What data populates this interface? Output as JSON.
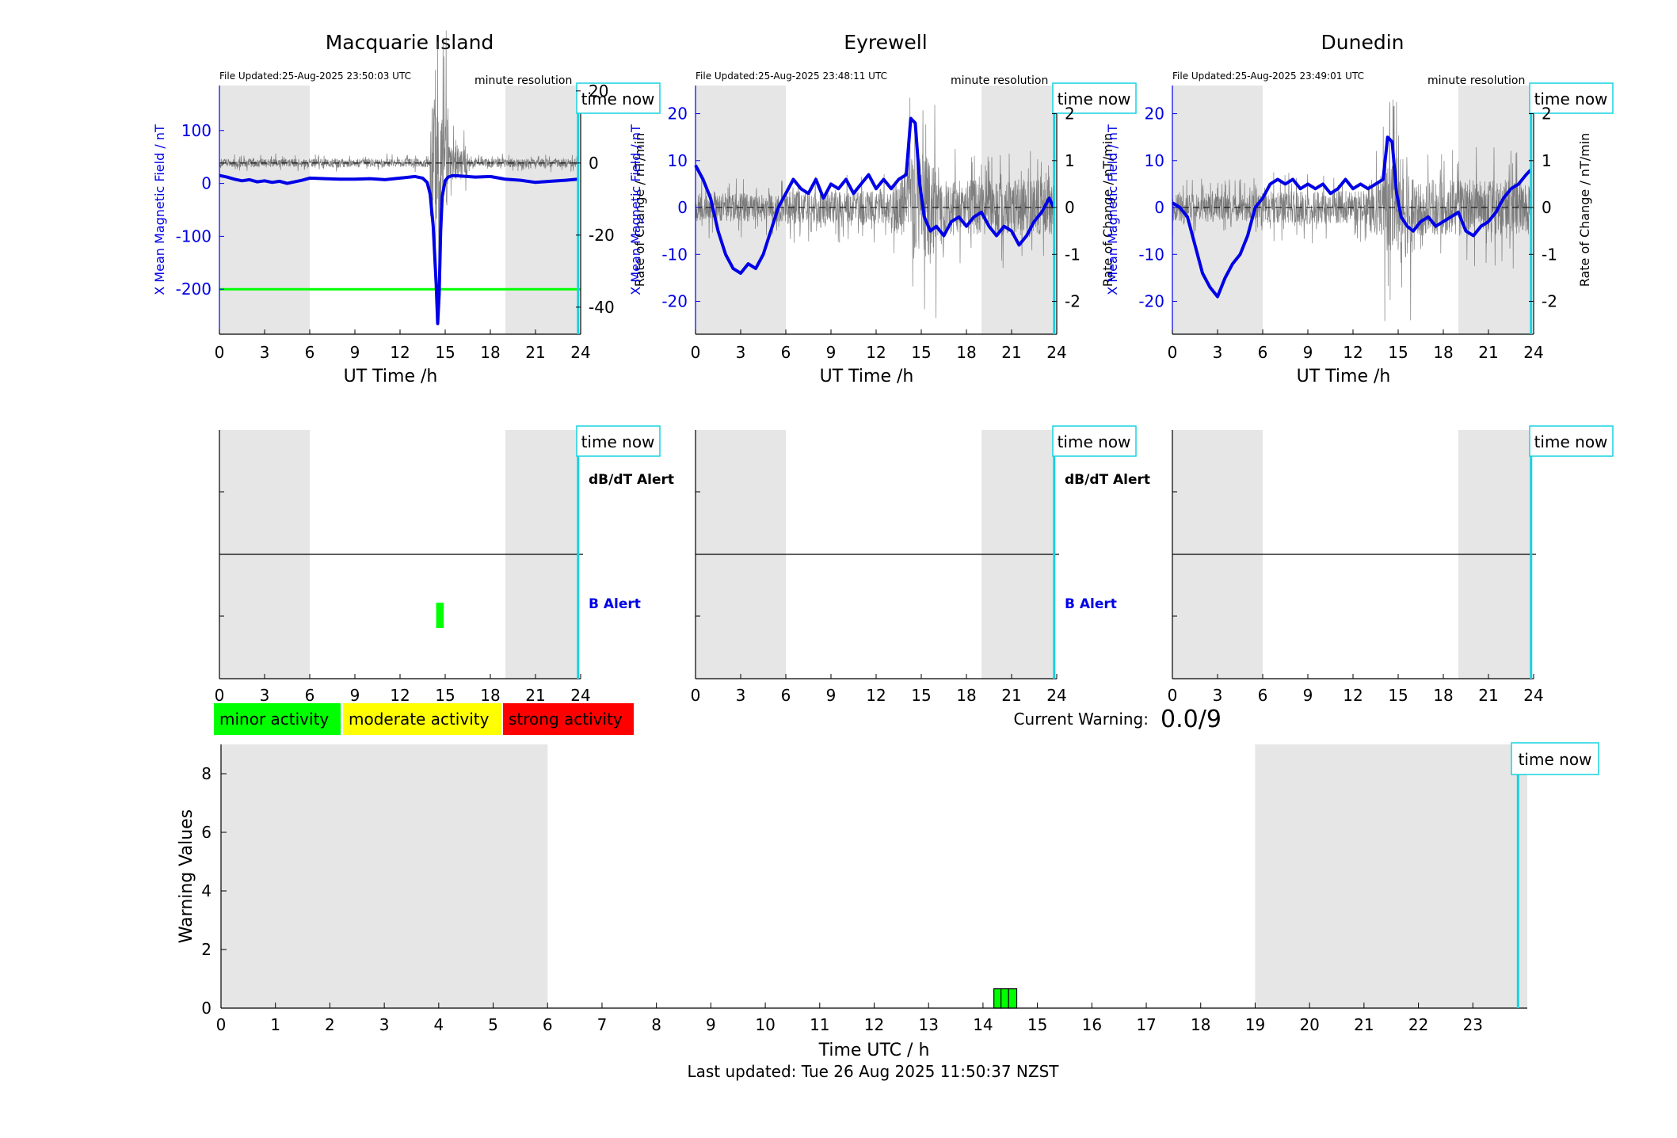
{
  "panels": [
    {
      "station": "Macquarie Island",
      "file_updated": "File Updated:25-Aug-2025 23:50:03 UTC",
      "resolution": "minute resolution",
      "time_now_label": "time now",
      "left_axis_label": "X Mean Magnetic Field / nT",
      "right_axis_label": "Rate of Change / nT/min",
      "xlabel": "UT Time /h",
      "left_ylim": [
        -285,
        185
      ],
      "left_ticks": [
        100,
        0,
        -100,
        -200
      ],
      "right_ylim": [
        -47.5,
        21.5
      ],
      "right_ticks": [
        20,
        0,
        -20,
        -40
      ],
      "threshold_line": -200,
      "threshold_color": "#00ff00",
      "alert_labels": {
        "dbdt": "dB/dT Alert",
        "b": "B Alert"
      },
      "alerts": [
        {
          "start": 14.4,
          "end": 14.9,
          "type": "B",
          "color": "#00ff00"
        }
      ]
    },
    {
      "station": "Eyrewell",
      "file_updated": "File Updated:25-Aug-2025 23:48:11 UTC",
      "resolution": "minute resolution",
      "time_now_label": "time now",
      "left_axis_label": "X Mean Magnetic Field / nT",
      "right_axis_label": "Rate of Change / nT/min",
      "xlabel": "UT Time /h",
      "left_ylim": [
        -27,
        26
      ],
      "left_ticks": [
        20,
        10,
        0,
        -10,
        -20
      ],
      "right_ylim": [
        -2.7,
        2.6
      ],
      "right_ticks": [
        2,
        1,
        0,
        -1,
        -2
      ],
      "threshold_line": null,
      "alert_labels": {
        "dbdt": "dB/dT Alert",
        "b": "B Alert"
      },
      "alerts": []
    },
    {
      "station": "Dunedin",
      "file_updated": "File Updated:25-Aug-2025 23:49:01 UTC",
      "resolution": "minute resolution",
      "time_now_label": "time now",
      "left_axis_label": "X Mean Magnetic Field / nT",
      "right_axis_label": "Rate of Change / nT/min",
      "xlabel": "UT Time /h",
      "left_ylim": [
        -27,
        26
      ],
      "left_ticks": [
        20,
        10,
        0,
        -10,
        -20
      ],
      "right_ylim": [
        -2.7,
        2.6
      ],
      "right_ticks": [
        2,
        1,
        0,
        -1,
        -2
      ],
      "threshold_line": null,
      "alert_labels": {
        "dbdt": "",
        "b": ""
      },
      "alerts": []
    }
  ],
  "time_now_hour": 23.83,
  "night_periods": [
    [
      0,
      6
    ],
    [
      19,
      24
    ]
  ],
  "xticks": [
    0,
    3,
    6,
    9,
    12,
    15,
    18,
    21,
    24
  ],
  "legend": [
    {
      "label": "minor activity",
      "color": "#00ff00"
    },
    {
      "label": "moderate activity",
      "color": "#ffff00"
    },
    {
      "label": "strong activity",
      "color": "#ff0000"
    }
  ],
  "current_warning_label": "Current Warning:",
  "current_warning_value": "0.0/9",
  "warning_chart": {
    "ylabel": "Warning Values",
    "xlabel": "Time UTC / h",
    "ylim": [
      0,
      9
    ],
    "yticks": [
      0,
      2,
      4,
      6,
      8
    ],
    "xticks": [
      0,
      1,
      2,
      3,
      4,
      5,
      6,
      7,
      8,
      9,
      10,
      11,
      12,
      13,
      14,
      15,
      16,
      17,
      18,
      19,
      20,
      21,
      22,
      23
    ],
    "time_now_label": "time now",
    "bars": [
      {
        "start": 14.2,
        "end": 14.33,
        "value": 0.66,
        "color": "#00ff00"
      },
      {
        "start": 14.33,
        "end": 14.47,
        "value": 0.66,
        "color": "#00ff00"
      },
      {
        "start": 14.47,
        "end": 14.62,
        "value": 0.66,
        "color": "#00ff00"
      }
    ]
  },
  "chart_data": [
    {
      "type": "line",
      "title": "Macquarie Island",
      "xlabel": "UT Time /h",
      "ylabel": "X Mean Magnetic Field / nT",
      "y2label": "Rate of Change / nT/min",
      "xlim": [
        0,
        24
      ],
      "ylim": [
        -285,
        185
      ],
      "y2lim": [
        -47.5,
        21.5
      ],
      "series": [
        {
          "x": [
            0,
            0.5,
            1,
            1.5,
            2,
            2.5,
            3,
            3.5,
            4,
            4.5,
            5,
            5.5,
            6,
            7,
            8,
            9,
            10,
            11,
            12,
            13,
            13.5,
            13.8,
            14.0,
            14.2,
            14.4,
            14.5,
            14.6,
            14.7,
            14.8,
            15.0,
            15.2,
            15.5,
            16,
            17,
            18,
            19,
            20,
            21,
            22,
            23,
            23.8
          ],
          "values": [
            15,
            12,
            8,
            5,
            7,
            3,
            5,
            2,
            4,
            0,
            3,
            6,
            10,
            9,
            8,
            8,
            9,
            7,
            10,
            13,
            10,
            2,
            -20,
            -80,
            -190,
            -265,
            -210,
            -90,
            -25,
            5,
            12,
            15,
            14,
            12,
            13,
            8,
            6,
            2,
            4,
            6,
            8
          ]
        }
      ]
    },
    {
      "type": "line",
      "title": "Eyrewell",
      "xlabel": "UT Time /h",
      "ylabel": "X Mean Magnetic Field / nT",
      "y2label": "Rate of Change / nT/min",
      "xlim": [
        0,
        24
      ],
      "ylim": [
        -27,
        26
      ],
      "y2lim": [
        -2.7,
        2.6
      ],
      "series": [
        {
          "x": [
            0,
            0.5,
            1,
            1.5,
            2,
            2.5,
            3,
            3.5,
            4,
            4.5,
            5,
            5.5,
            6,
            6.5,
            7,
            7.5,
            8,
            8.5,
            9,
            9.5,
            10,
            10.5,
            11,
            11.5,
            12,
            12.5,
            13,
            13.5,
            14,
            14.3,
            14.6,
            14.9,
            15.2,
            15.6,
            16,
            16.5,
            17,
            17.5,
            18,
            18.5,
            19,
            19.5,
            20,
            20.5,
            21,
            21.5,
            22,
            22.5,
            23,
            23.5,
            23.8
          ],
          "values": [
            9,
            6,
            2,
            -5,
            -10,
            -13,
            -14,
            -12,
            -13,
            -10,
            -5,
            0,
            3,
            6,
            4,
            3,
            6,
            2,
            5,
            4,
            6,
            3,
            5,
            7,
            4,
            6,
            4,
            6,
            7,
            19,
            18,
            5,
            -2,
            -5,
            -4,
            -6,
            -3,
            -2,
            -4,
            -2,
            -1,
            -4,
            -6,
            -4,
            -5,
            -8,
            -6,
            -3,
            -1,
            2,
            0
          ]
        }
      ]
    },
    {
      "type": "line",
      "title": "Dunedin",
      "xlabel": "UT Time /h",
      "ylabel": "X Mean Magnetic Field / nT",
      "y2label": "Rate of Change / nT/min",
      "xlim": [
        0,
        24
      ],
      "ylim": [
        -27,
        26
      ],
      "y2lim": [
        -2.7,
        2.6
      ],
      "series": [
        {
          "x": [
            0,
            0.5,
            1,
            1.5,
            2,
            2.5,
            3,
            3.5,
            4,
            4.5,
            5,
            5.5,
            6,
            6.5,
            7,
            7.5,
            8,
            8.5,
            9,
            9.5,
            10,
            10.5,
            11,
            11.5,
            12,
            12.5,
            13,
            13.5,
            14,
            14.3,
            14.6,
            14.9,
            15.2,
            15.6,
            16,
            16.5,
            17,
            17.5,
            18,
            18.5,
            19,
            19.5,
            20,
            20.5,
            21,
            21.5,
            22,
            22.5,
            23,
            23.5,
            23.8
          ],
          "values": [
            1,
            0,
            -2,
            -8,
            -14,
            -17,
            -19,
            -15,
            -12,
            -10,
            -6,
            0,
            2,
            5,
            6,
            5,
            6,
            4,
            5,
            4,
            5,
            3,
            4,
            6,
            4,
            5,
            4,
            5,
            6,
            15,
            14,
            3,
            -2,
            -4,
            -5,
            -3,
            -2,
            -4,
            -3,
            -2,
            -1,
            -5,
            -6,
            -4,
            -3,
            -1,
            2,
            4,
            5,
            7,
            8
          ]
        }
      ]
    },
    {
      "type": "bar",
      "xlabel": "Time UTC / h",
      "ylabel": "Warning Values",
      "xlim": [
        0,
        24
      ],
      "ylim": [
        0,
        9
      ],
      "x": [
        14.27,
        14.4,
        14.55
      ],
      "values": [
        0.66,
        0.66,
        0.66
      ]
    }
  ],
  "footer": {
    "last_updated": "Last updated: Tue 26 Aug 2025 11:50:37 NZST"
  }
}
